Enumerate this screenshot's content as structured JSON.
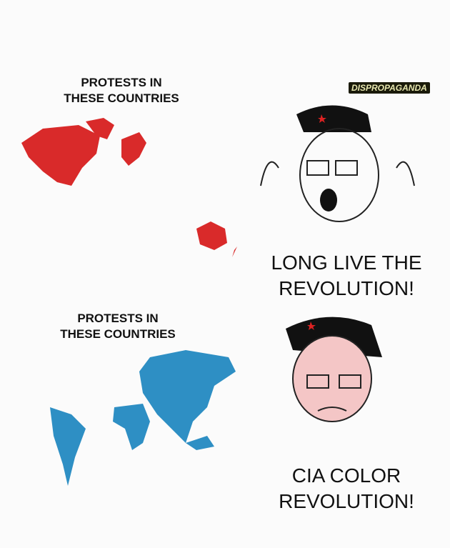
{
  "top_panel": {
    "heading_line1": "PROTESTS IN",
    "heading_line2": "THESE COUNTRIES",
    "caption_line1": "LONG LIVE THE",
    "caption_line2": "REVOLUTION!",
    "map_color": "#d92a2a"
  },
  "bottom_panel": {
    "heading_line1": "PROTESTS IN",
    "heading_line2": "THESE COUNTRIES",
    "caption_line1": "CIA COLOR",
    "caption_line2": "REVOLUTION!",
    "map_color": "#2e8fc4"
  },
  "watermark": "DISPROPAGANDA"
}
